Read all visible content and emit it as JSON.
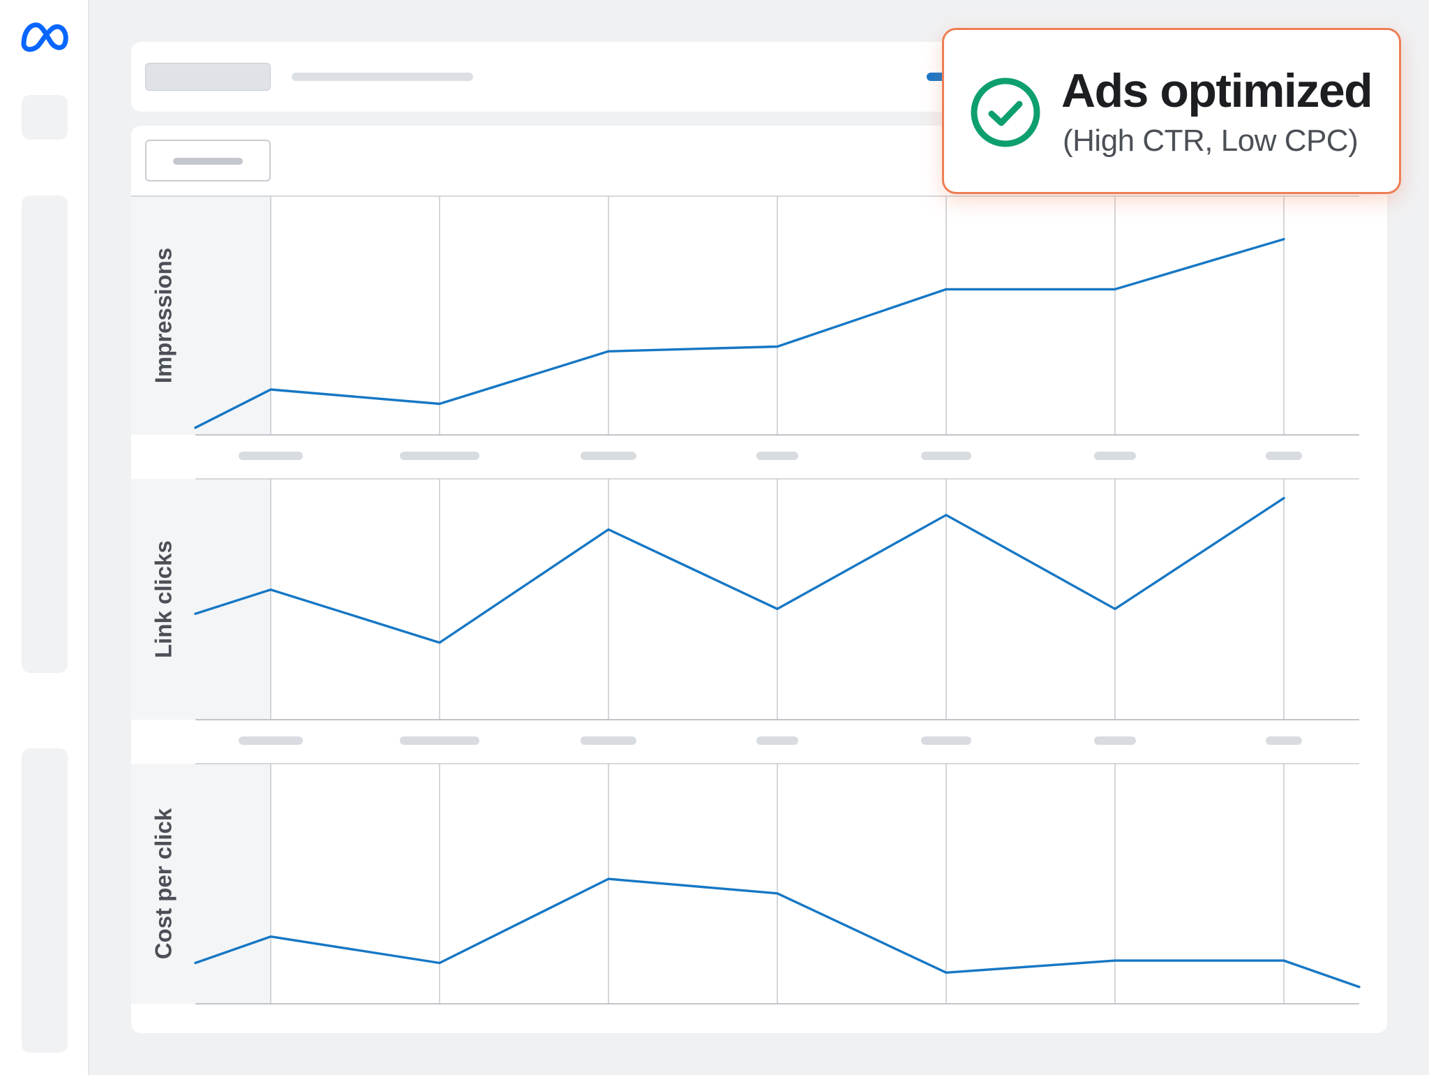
{
  "notification": {
    "title": "Ads optimized",
    "subtitle": "(High CTR, Low CPC)",
    "status_color": "#0e9f6e",
    "border_color": "#ee7e54",
    "icon": "check-circle-icon"
  },
  "sidebar": {
    "logo": "meta-logo-icon",
    "logo_color": "#0866ff"
  },
  "chart_data": [
    {
      "type": "line",
      "ylabel": "Impressions",
      "color": "#1677c4",
      "x": [
        0,
        1,
        2,
        3,
        4,
        5,
        6,
        7
      ],
      "values": [
        0.03,
        0.19,
        0.13,
        0.35,
        0.37,
        0.61,
        0.61,
        0.82
      ],
      "ylim": [
        0,
        1
      ],
      "grid": true
    },
    {
      "type": "line",
      "ylabel": "Link clicks",
      "color": "#1677c4",
      "x": [
        0,
        1,
        2,
        3,
        4,
        5,
        6,
        7
      ],
      "values": [
        0.44,
        0.54,
        0.32,
        0.79,
        0.46,
        0.85,
        0.46,
        0.92
      ],
      "ylim": [
        0,
        1
      ],
      "grid": true
    },
    {
      "type": "line",
      "ylabel": "Cost per click",
      "color": "#1677c4",
      "x": [
        0,
        1,
        2,
        3,
        4,
        5,
        6,
        7,
        8
      ],
      "values": [
        0.17,
        0.28,
        0.17,
        0.52,
        0.46,
        0.13,
        0.18,
        0.18,
        0.07
      ],
      "ylim": [
        0,
        1
      ],
      "grid": true
    }
  ]
}
